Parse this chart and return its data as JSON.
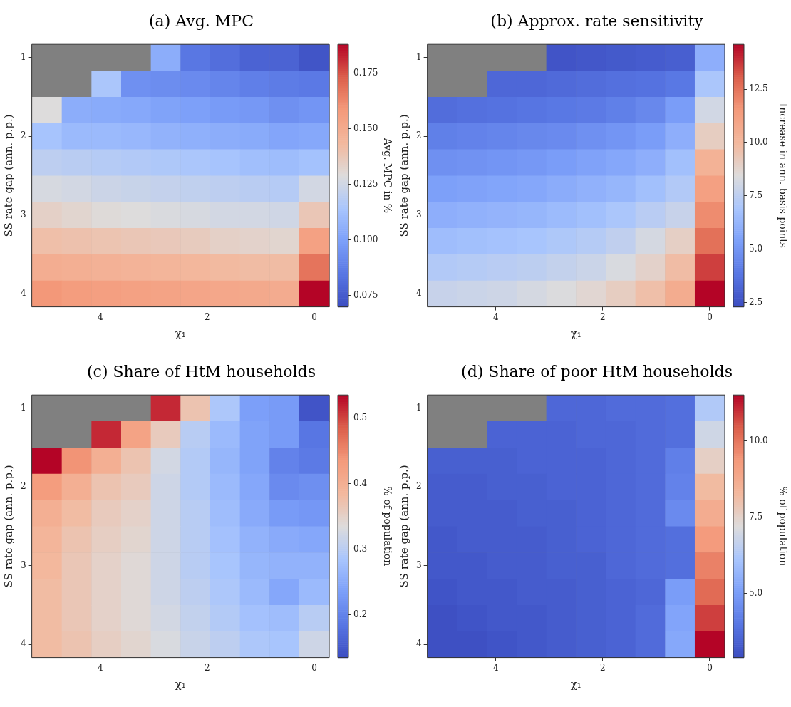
{
  "chart_data": [
    {
      "type": "heatmap",
      "title": "(a) Avg. MPC",
      "xlabel": "χ₁",
      "ylabel": "SS rate gap (ann. p.p.)",
      "clabel": "Avg. MPC in %",
      "x": [
        5,
        4.44,
        3.89,
        3.33,
        2.78,
        2.22,
        1.67,
        1.11,
        0.56,
        0
      ],
      "xlim": [
        5.28,
        -0.28
      ],
      "xticks": [
        4,
        2,
        0
      ],
      "y_categories": [
        "1",
        null,
        null,
        "2",
        null,
        null,
        "3",
        null,
        null,
        "4"
      ],
      "clim": [
        0.07,
        0.188
      ],
      "cticks": [
        0.075,
        {
          "value": 0.1,
          "label": "0.100"
        },
        0.125,
        {
          "value": 0.15,
          "label": "0.150"
        },
        0.175
      ],
      "cells": [
        [
          null,
          null,
          null,
          null,
          0.105,
          0.085,
          0.082,
          0.078,
          0.078,
          0.073
        ],
        [
          null,
          null,
          0.115,
          0.094,
          0.093,
          0.092,
          0.09,
          0.088,
          0.087,
          0.086
        ],
        [
          0.129,
          0.105,
          0.104,
          0.103,
          0.101,
          0.1,
          0.098,
          0.097,
          0.094,
          0.096
        ],
        [
          0.114,
          0.11,
          0.11,
          0.109,
          0.107,
          0.106,
          0.105,
          0.104,
          0.102,
          0.103
        ],
        [
          0.12,
          0.119,
          0.118,
          0.117,
          0.116,
          0.115,
          0.114,
          0.112,
          0.111,
          0.113
        ],
        [
          0.127,
          0.126,
          0.124,
          0.123,
          0.122,
          0.121,
          0.12,
          0.119,
          0.118,
          0.126
        ],
        [
          0.134,
          0.132,
          0.13,
          0.129,
          0.128,
          0.127,
          0.126,
          0.126,
          0.125,
          0.138
        ],
        [
          0.141,
          0.14,
          0.139,
          0.138,
          0.137,
          0.136,
          0.134,
          0.133,
          0.132,
          0.155
        ],
        [
          0.149,
          0.148,
          0.147,
          0.146,
          0.145,
          0.144,
          0.143,
          0.142,
          0.142,
          0.168
        ],
        [
          0.159,
          0.157,
          0.156,
          0.155,
          0.154,
          0.153,
          0.152,
          0.151,
          0.15,
          0.188
        ]
      ]
    },
    {
      "type": "heatmap",
      "title": "(b) Approx. rate sensitivity",
      "xlabel": "χ₁",
      "ylabel": "SS rate gap (ann. p.p.)",
      "clabel": "Increase in ann. basis points",
      "x": [
        5,
        4.44,
        3.89,
        3.33,
        2.78,
        2.22,
        1.67,
        1.11,
        0.56,
        0
      ],
      "xlim": [
        5.28,
        -0.28
      ],
      "xticks": [
        4,
        2,
        0
      ],
      "y_categories": [
        "1",
        null,
        null,
        "2",
        null,
        null,
        "3",
        null,
        null,
        "4"
      ],
      "clim": [
        2.3,
        14.6
      ],
      "cticks": [
        2.5,
        {
          "value": 5,
          "label": "5.0"
        },
        7.5,
        {
          "value": 10,
          "label": "10.0"
        },
        12.5
      ],
      "cells": [
        [
          null,
          null,
          null,
          null,
          2.6,
          2.7,
          2.8,
          2.9,
          3.0,
          6.0
        ],
        [
          null,
          null,
          3.3,
          3.3,
          3.4,
          3.5,
          3.6,
          3.7,
          3.9,
          7.0
        ],
        [
          3.5,
          3.6,
          3.7,
          3.8,
          3.9,
          4.0,
          4.2,
          4.5,
          5.3,
          8.1
        ],
        [
          4.2,
          4.3,
          4.4,
          4.5,
          4.6,
          4.8,
          5.0,
          5.3,
          6.0,
          9.1
        ],
        [
          4.8,
          4.9,
          5.0,
          5.1,
          5.3,
          5.5,
          5.7,
          6.0,
          6.7,
          10.3
        ],
        [
          5.4,
          5.5,
          5.6,
          5.7,
          5.9,
          6.1,
          6.3,
          6.7,
          7.2,
          11.2
        ],
        [
          6.0,
          6.1,
          6.2,
          6.3,
          6.5,
          6.7,
          7.0,
          7.4,
          7.8,
          11.9
        ],
        [
          6.6,
          6.7,
          6.8,
          6.9,
          7.1,
          7.3,
          7.6,
          8.2,
          9.0,
          12.6
        ],
        [
          7.2,
          7.3,
          7.4,
          7.5,
          7.7,
          7.9,
          8.3,
          8.9,
          9.8,
          13.6
        ],
        [
          7.8,
          7.9,
          8.0,
          8.2,
          8.4,
          8.7,
          9.1,
          9.7,
          10.6,
          14.6
        ]
      ]
    },
    {
      "type": "heatmap",
      "title": "(c) Share of HtM households",
      "xlabel": "χ₁",
      "ylabel": "SS rate gap (ann. p.p.)",
      "clabel": "% of population",
      "x": [
        5,
        4.44,
        3.89,
        3.33,
        2.78,
        2.22,
        1.67,
        1.11,
        0.56,
        0
      ],
      "xlim": [
        5.28,
        -0.28
      ],
      "xticks": [
        4,
        2,
        0
      ],
      "y_categories": [
        "1",
        null,
        null,
        "2",
        null,
        null,
        "3",
        null,
        null,
        "4"
      ],
      "clim": [
        0.135,
        0.535
      ],
      "cticks": [
        0.2,
        0.3,
        0.4,
        0.5
      ],
      "cells": [
        [
          null,
          null,
          null,
          null,
          0.515,
          0.37,
          0.29,
          0.235,
          0.23,
          0.145
        ],
        [
          null,
          null,
          0.515,
          0.42,
          0.36,
          0.3,
          0.27,
          0.24,
          0.23,
          0.185
        ],
        [
          0.535,
          0.44,
          0.4,
          0.37,
          0.325,
          0.295,
          0.265,
          0.24,
          0.2,
          0.19
        ],
        [
          0.43,
          0.4,
          0.37,
          0.36,
          0.32,
          0.295,
          0.27,
          0.245,
          0.21,
          0.215
        ],
        [
          0.4,
          0.38,
          0.36,
          0.35,
          0.32,
          0.3,
          0.275,
          0.25,
          0.23,
          0.225
        ],
        [
          0.39,
          0.37,
          0.355,
          0.345,
          0.32,
          0.3,
          0.28,
          0.26,
          0.25,
          0.245
        ],
        [
          0.385,
          0.365,
          0.35,
          0.34,
          0.32,
          0.3,
          0.285,
          0.265,
          0.26,
          0.26
        ],
        [
          0.38,
          0.365,
          0.35,
          0.34,
          0.32,
          0.305,
          0.29,
          0.27,
          0.245,
          0.27
        ],
        [
          0.38,
          0.365,
          0.35,
          0.34,
          0.325,
          0.31,
          0.295,
          0.28,
          0.275,
          0.3
        ],
        [
          0.38,
          0.37,
          0.355,
          0.345,
          0.33,
          0.315,
          0.305,
          0.29,
          0.285,
          0.32
        ]
      ]
    },
    {
      "type": "heatmap",
      "title": "(d) Share of poor HtM households",
      "xlabel": "χ₁",
      "ylabel": "SS rate gap (ann. p.p.)",
      "clabel": "% of population",
      "x": [
        5,
        4.44,
        3.89,
        3.33,
        2.78,
        2.22,
        1.67,
        1.11,
        0.56,
        0
      ],
      "xlim": [
        5.28,
        -0.28
      ],
      "xticks": [
        4,
        2,
        0
      ],
      "y_categories": [
        "1",
        null,
        null,
        "2",
        null,
        null,
        "3",
        null,
        null,
        "4"
      ],
      "clim": [
        2.9,
        11.5
      ],
      "cticks": [
        {
          "value": 5,
          "label": "5.0"
        },
        7.5,
        {
          "value": 10,
          "label": "10.0"
        }
      ],
      "cells": [
        [
          null,
          null,
          null,
          null,
          3.6,
          3.6,
          3.7,
          3.7,
          3.8,
          6.3
        ],
        [
          null,
          null,
          3.5,
          3.5,
          3.5,
          3.6,
          3.6,
          3.7,
          3.8,
          6.9
        ],
        [
          3.4,
          3.4,
          3.4,
          3.5,
          3.5,
          3.5,
          3.6,
          3.7,
          4.2,
          7.6
        ],
        [
          3.3,
          3.3,
          3.4,
          3.4,
          3.5,
          3.5,
          3.6,
          3.7,
          4.3,
          8.2
        ],
        [
          3.3,
          3.3,
          3.3,
          3.4,
          3.4,
          3.5,
          3.6,
          3.7,
          4.5,
          8.7
        ],
        [
          3.2,
          3.3,
          3.3,
          3.3,
          3.4,
          3.5,
          3.6,
          3.7,
          3.8,
          9.3
        ],
        [
          3.2,
          3.2,
          3.3,
          3.3,
          3.4,
          3.4,
          3.6,
          3.7,
          3.8,
          9.8
        ],
        [
          3.1,
          3.2,
          3.2,
          3.3,
          3.3,
          3.4,
          3.5,
          3.6,
          5.0,
          10.2
        ],
        [
          3.0,
          3.1,
          3.2,
          3.2,
          3.3,
          3.4,
          3.5,
          3.7,
          5.2,
          10.8
        ],
        [
          3.0,
          3.0,
          3.1,
          3.2,
          3.3,
          3.4,
          3.5,
          3.7,
          5.3,
          11.5
        ]
      ]
    }
  ]
}
